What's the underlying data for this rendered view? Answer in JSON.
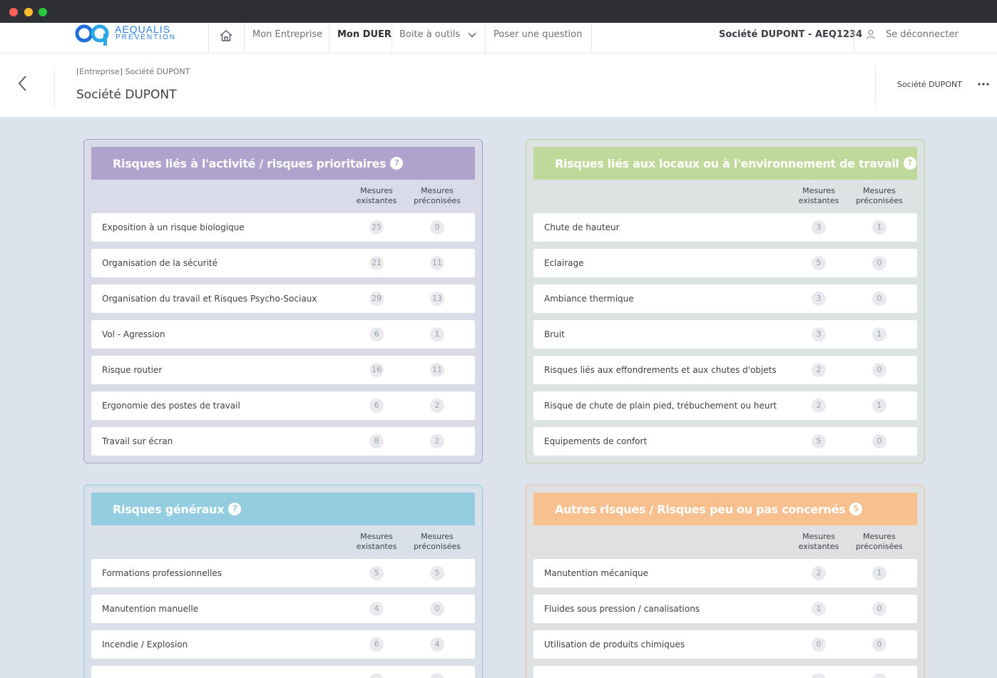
{
  "nav": {
    "logo_line1": "AEQUALIS",
    "logo_line2": "PRÉVENTION",
    "items": [
      "Mon Entreprise",
      "Mon DUER",
      "Boite à outils",
      "Poser une question"
    ],
    "company": "Société DUPONT - AEQ1234",
    "logout": "Se déconnecter"
  },
  "header": {
    "breadcrumb": "[Entreprise] Société DUPONT",
    "title": "Société DUPONT",
    "right_company": "Société DUPONT"
  },
  "columns": {
    "existing_l1": "Mesures",
    "existing_l2": "existantes",
    "recommended_l1": "Mesures",
    "recommended_l2": "préconisées"
  },
  "panels": [
    {
      "title": "Risques liés à l'activité / risques prioritaires",
      "count": "7",
      "rows": [
        {
          "label": "Exposition à un risque biologique",
          "existing": "25",
          "recommended": "0"
        },
        {
          "label": "Organisation de la sécurité",
          "existing": "21",
          "recommended": "11"
        },
        {
          "label": "Organisation du travail et Risques Psycho-Sociaux",
          "existing": "29",
          "recommended": "13"
        },
        {
          "label": "Vol - Agression",
          "existing": "6",
          "recommended": "1"
        },
        {
          "label": "Risque routier",
          "existing": "16",
          "recommended": "11"
        },
        {
          "label": "Ergonomie des postes de travail",
          "existing": "6",
          "recommended": "2"
        },
        {
          "label": "Travail sur écran",
          "existing": "8",
          "recommended": "2"
        }
      ]
    },
    {
      "title": "Risques liés aux locaux ou à l'environnement de travail",
      "count": "7",
      "rows": [
        {
          "label": "Chute de hauteur",
          "existing": "3",
          "recommended": "1"
        },
        {
          "label": "Eclairage",
          "existing": "5",
          "recommended": "0"
        },
        {
          "label": "Ambiance thermique",
          "existing": "3",
          "recommended": "0"
        },
        {
          "label": "Bruit",
          "existing": "3",
          "recommended": "1"
        },
        {
          "label": "Risques liés aux effondrements et aux chutes d'objets",
          "existing": "2",
          "recommended": "0"
        },
        {
          "label": "Risque de chute de plain pied, trébuchement ou heurt",
          "existing": "2",
          "recommended": "1"
        },
        {
          "label": "Equipements de confort",
          "existing": "5",
          "recommended": "0"
        }
      ]
    },
    {
      "title": "Risques généraux",
      "count": "7",
      "rows": [
        {
          "label": "Formations professionnelles",
          "existing": "5",
          "recommended": "5"
        },
        {
          "label": "Manutention manuelle",
          "existing": "4",
          "recommended": "0"
        },
        {
          "label": "Incendie / Explosion",
          "existing": "6",
          "recommended": "4"
        },
        {
          "label": "",
          "existing": "",
          "recommended": ""
        }
      ]
    },
    {
      "title": "Autres risques / Risques peu ou pas concernés",
      "count": "5",
      "rows": [
        {
          "label": "Manutention mécanique",
          "existing": "2",
          "recommended": "1"
        },
        {
          "label": "Fluides sous pression / canalisations",
          "existing": "1",
          "recommended": "0"
        },
        {
          "label": "Utilisation de produits chimiques",
          "existing": "0",
          "recommended": "0"
        },
        {
          "label": "",
          "existing": "",
          "recommended": ""
        }
      ]
    }
  ]
}
